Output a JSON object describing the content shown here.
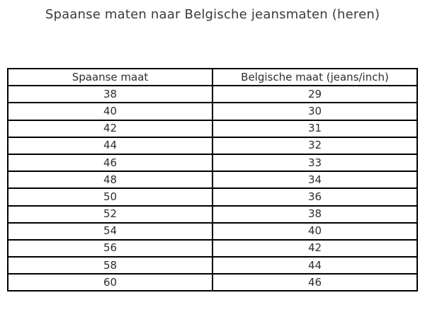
{
  "title": "Spaanse maten naar Belgische jeansmaten (heren)",
  "colors": {
    "background": "#ffffff",
    "title_text": "#3a3a3a",
    "cell_text": "#2e2e2e",
    "border": "#000000"
  },
  "chart_data": {
    "type": "table",
    "title": "Spaanse maten naar Belgische jeansmaten (heren)",
    "columns": [
      "Spaanse maat",
      "Belgische maat (jeans/inch)"
    ],
    "rows": [
      [
        "38",
        "29"
      ],
      [
        "40",
        "30"
      ],
      [
        "42",
        "31"
      ],
      [
        "44",
        "32"
      ],
      [
        "46",
        "33"
      ],
      [
        "48",
        "34"
      ],
      [
        "50",
        "36"
      ],
      [
        "52",
        "38"
      ],
      [
        "54",
        "40"
      ],
      [
        "56",
        "42"
      ],
      [
        "58",
        "44"
      ],
      [
        "60",
        "46"
      ]
    ],
    "layout": {
      "header_bold": false,
      "text_align": "center",
      "grid": true
    }
  }
}
